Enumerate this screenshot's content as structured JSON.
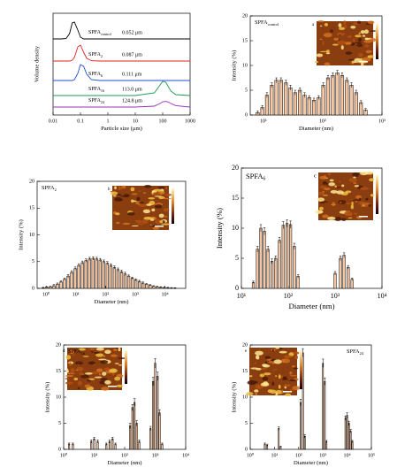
{
  "chart_data": [
    {
      "type": "line",
      "ylabel": "Volume density",
      "xlabel": "Particle size (μm)",
      "log_x": true,
      "xlim": [
        0.01,
        1000
      ],
      "xticks": [
        0.01,
        0.1,
        1,
        10,
        100,
        1000
      ],
      "x": [
        0.01,
        0.02,
        0.03,
        0.04,
        0.05,
        0.06,
        0.08,
        0.1,
        0.13,
        0.17,
        0.25,
        0.5,
        1,
        10,
        50,
        80,
        100,
        130,
        160,
        200,
        300,
        1000
      ],
      "series": [
        {
          "name": [
            "SPFA",
            "control"
          ],
          "label": "0.052 μm",
          "color": "#000000",
          "values": [
            0,
            0,
            0.02,
            0.3,
            0.9,
            0.95,
            0.5,
            0.1,
            0,
            0,
            0,
            0,
            0,
            0,
            0,
            0,
            0,
            0,
            0,
            0,
            0,
            0
          ]
        },
        {
          "name": [
            "SPFA",
            "2"
          ],
          "label": "0.087 μm",
          "color": "#e02020",
          "values": [
            0,
            0,
            0,
            0,
            0.05,
            0.2,
            0.8,
            0.9,
            0.5,
            0.15,
            0.02,
            0,
            0,
            0,
            0,
            0,
            0,
            0,
            0,
            0,
            0,
            0
          ]
        },
        {
          "name": [
            "SPFA",
            "6"
          ],
          "label": "0.111 μm",
          "color": "#1f4fd0",
          "values": [
            0,
            0,
            0,
            0,
            0,
            0.05,
            0.4,
            0.9,
            0.8,
            0.35,
            0.05,
            0,
            0,
            0,
            0,
            0,
            0,
            0,
            0,
            0,
            0,
            0
          ]
        },
        {
          "name": [
            "SPFA",
            "16"
          ],
          "label": "113.0 μm",
          "color": "#1a9a50",
          "values": [
            0,
            0,
            0,
            0,
            0,
            0,
            0,
            0,
            0,
            0,
            0,
            0,
            0,
            0,
            0.15,
            0.6,
            0.8,
            0.75,
            0.5,
            0.25,
            0.05,
            0
          ]
        },
        {
          "name": [
            "SPFA",
            "24"
          ],
          "label": "124.8 μm",
          "color": "#9a30c0",
          "values": [
            0,
            0,
            0,
            0,
            0,
            0,
            0,
            0,
            0,
            0,
            0,
            0,
            0,
            0,
            0.05,
            0.2,
            0.3,
            0.32,
            0.28,
            0.2,
            0.08,
            0
          ]
        }
      ]
    },
    {
      "type": "bar",
      "name": [
        "SPFA",
        "control"
      ],
      "panel": "a",
      "xlabel": "Diameter (nm)",
      "ylabel": "Intensity (%)",
      "log_x": true,
      "xlim": [
        6,
        1000
      ],
      "xticks": [
        {
          "value": 10,
          "label": "10¹"
        },
        {
          "value": 100,
          "label": "10²"
        },
        {
          "value": 1000,
          "label": "10³"
        }
      ],
      "ylim": [
        0,
        20
      ],
      "yticks": [
        0,
        5,
        10,
        15,
        20
      ],
      "color": "#f6c6a2",
      "x": [
        8,
        9.6,
        11.5,
        13.8,
        16.6,
        19.9,
        23.9,
        28.6,
        34.4,
        41.2,
        49.5,
        59.4,
        71.2,
        85.5,
        102.6,
        123,
        148,
        177,
        213,
        255,
        306,
        368,
        441,
        529
      ],
      "values": [
        0.5,
        1.5,
        4,
        6,
        7,
        7,
        6.5,
        5.5,
        4.5,
        5,
        4,
        3.5,
        3,
        3.5,
        6,
        7.5,
        8,
        8.5,
        8,
        7,
        6,
        4.5,
        2.5,
        1
      ],
      "errors": [
        0.3,
        0.4,
        0.5,
        0.5,
        0.5,
        0.5,
        0.5,
        0.5,
        0.5,
        0.5,
        0.5,
        0.4,
        0.4,
        0.4,
        0.5,
        0.5,
        0.5,
        0.5,
        0.5,
        0.5,
        0.5,
        0.5,
        0.4,
        0.3
      ]
    },
    {
      "type": "bar",
      "name": [
        "SPFA",
        "2"
      ],
      "panel": "b",
      "xlabel": "Diameter (nm)",
      "ylabel": "Intensity (%)",
      "log_x": true,
      "xlim": [
        0.5,
        50000
      ],
      "xticks": [
        {
          "value": 1,
          "label": "10⁰"
        },
        {
          "value": 10,
          "label": "10¹"
        },
        {
          "value": 100,
          "label": "10²"
        },
        {
          "value": 1000,
          "label": "10³"
        },
        {
          "value": 10000,
          "label": "10⁴"
        }
      ],
      "ylim": [
        0,
        20
      ],
      "yticks": [
        0,
        5,
        10,
        15,
        20
      ],
      "color": "#f6c6a2",
      "x": [
        0.8,
        1.05,
        1.39,
        1.83,
        2.41,
        3.18,
        4.19,
        5.52,
        7.28,
        9.59,
        12.6,
        16.7,
        22,
        29,
        38.2,
        50.3,
        66.3,
        87.4,
        115,
        152,
        200,
        264,
        348,
        458,
        604,
        796,
        1050,
        1380,
        1820,
        2400,
        3170,
        4170,
        5500,
        7250,
        9560,
        12600,
        16600,
        21900
      ],
      "values": [
        0.1,
        0.2,
        0.3,
        0.5,
        0.8,
        1.2,
        1.7,
        2.3,
        3,
        3.7,
        4.3,
        4.8,
        5.2,
        5.5,
        5.6,
        5.5,
        5.3,
        5,
        4.7,
        4.3,
        3.9,
        3.5,
        3.1,
        2.7,
        2.3,
        1.9,
        1.6,
        1.3,
        1,
        0.8,
        0.6,
        0.4,
        0.3,
        0.2,
        0.15,
        0.1,
        0.05,
        0.03
      ],
      "errors": [
        0.1,
        0.1,
        0.1,
        0.2,
        0.2,
        0.2,
        0.2,
        0.3,
        0.3,
        0.3,
        0.3,
        0.3,
        0.3,
        0.3,
        0.3,
        0.3,
        0.3,
        0.3,
        0.3,
        0.3,
        0.3,
        0.3,
        0.3,
        0.3,
        0.2,
        0.2,
        0.2,
        0.2,
        0.2,
        0.1,
        0.1,
        0.1,
        0.1,
        0.1,
        0.1,
        0.1,
        0.1,
        0.1
      ]
    },
    {
      "type": "bar",
      "name": [
        "SPFA",
        "6"
      ],
      "panel": "c",
      "xlabel": "Diameter (nm)",
      "ylabel": "Intensity (%)",
      "log_x": true,
      "xlim": [
        10,
        10000
      ],
      "xticks": [
        {
          "value": 10,
          "label": "10¹"
        },
        {
          "value": 100,
          "label": "10²"
        },
        {
          "value": 1000,
          "label": "10³"
        },
        {
          "value": 10000,
          "label": "10⁴"
        }
      ],
      "ylim": [
        0,
        20
      ],
      "yticks": [
        0,
        5,
        10,
        15,
        20
      ],
      "color": "#f6c6a2",
      "x": [
        18,
        22,
        26,
        31,
        37,
        45,
        54,
        65,
        78,
        94,
        112,
        135,
        162,
        1000,
        1300,
        1550,
        1900,
        2300
      ],
      "values": [
        1,
        6.5,
        10,
        9.5,
        6.5,
        4.5,
        5,
        8,
        10.5,
        10.8,
        10.6,
        7,
        2,
        2.5,
        5,
        5.5,
        3.5,
        1.5
      ],
      "errors": [
        0.2,
        0.5,
        0.6,
        0.6,
        0.5,
        0.4,
        0.4,
        0.5,
        0.6,
        0.6,
        0.6,
        0.5,
        0.3,
        0.3,
        0.4,
        0.4,
        0.3,
        0.2
      ]
    },
    {
      "type": "bar",
      "name": [
        "SPFA",
        "16"
      ],
      "panel": "d",
      "xlabel": "Diameter (nm)",
      "ylabel": "Intensity (%)",
      "log_x": true,
      "xlim": [
        1,
        10000
      ],
      "xticks": [
        {
          "value": 1,
          "label": "10⁰"
        },
        {
          "value": 10,
          "label": "10¹"
        },
        {
          "value": 100,
          "label": "10²"
        },
        {
          "value": 1000,
          "label": "10³"
        },
        {
          "value": 10000,
          "label": "10⁴"
        }
      ],
      "ylim": [
        0,
        20
      ],
      "yticks": [
        0,
        5,
        10,
        15,
        20
      ],
      "color": "#f6c6a2",
      "x": [
        1.5,
        2,
        8,
        10,
        13,
        25,
        32,
        40,
        50,
        150,
        180,
        210,
        250,
        300,
        700,
        850,
        1000,
        1200,
        1400,
        1700
      ],
      "values": [
        1,
        1,
        1.5,
        2,
        1.5,
        1,
        1.5,
        2,
        1,
        4.5,
        8,
        9,
        5,
        1.5,
        4,
        13,
        16.5,
        14,
        7,
        1
      ],
      "errors": [
        0.2,
        0.2,
        0.3,
        0.3,
        0.3,
        0.2,
        0.3,
        0.3,
        0.2,
        0.5,
        0.6,
        0.7,
        0.5,
        0.3,
        0.4,
        0.8,
        0.9,
        0.8,
        0.6,
        0.2
      ]
    },
    {
      "type": "bar",
      "name": [
        "SPFA",
        "24"
      ],
      "panel": "e",
      "xlabel": "Diameter (nm)",
      "ylabel": "Intensity (%)",
      "log_x": true,
      "xlim": [
        1,
        100000
      ],
      "xticks": [
        {
          "value": 1,
          "label": "10⁰"
        },
        {
          "value": 10,
          "label": "10¹"
        },
        {
          "value": 100,
          "label": "10²"
        },
        {
          "value": 1000,
          "label": "10³"
        },
        {
          "value": 10000,
          "label": "10⁴"
        },
        {
          "value": 100000,
          "label": "10⁵"
        }
      ],
      "ylim": [
        0,
        20
      ],
      "yticks": [
        0,
        5,
        10,
        15,
        20
      ],
      "color": "#f6c6a2",
      "x": [
        4,
        5,
        15,
        18,
        120,
        150,
        180,
        1000,
        1200,
        1400,
        8500,
        10000,
        12000,
        14000,
        16500
      ],
      "values": [
        1,
        0.8,
        4,
        0.5,
        9,
        18.5,
        2.5,
        16.5,
        13,
        1.5,
        6,
        6.5,
        5,
        3.5,
        1.5
      ],
      "errors": [
        0.2,
        0.2,
        0.3,
        0.1,
        0.6,
        0.8,
        0.3,
        0.8,
        0.7,
        0.2,
        0.4,
        0.5,
        0.4,
        0.3,
        0.2
      ]
    }
  ]
}
